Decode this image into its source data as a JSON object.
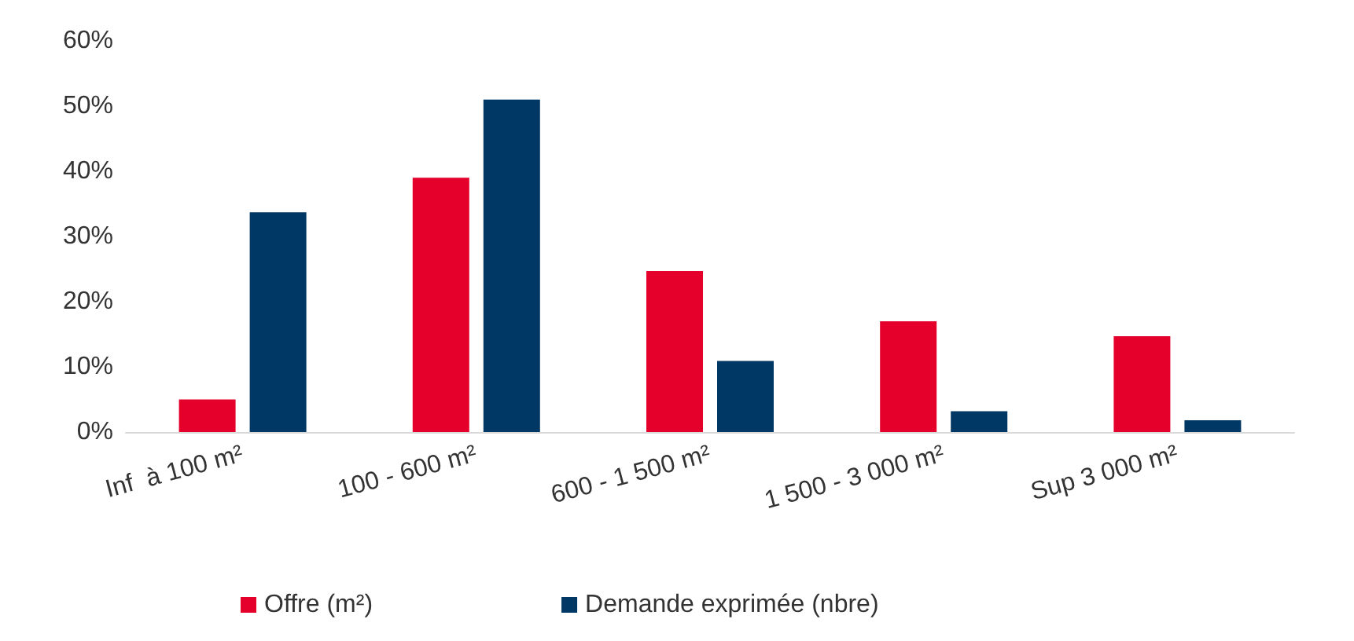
{
  "chart_data": {
    "type": "bar",
    "categories": [
      "Inf  à 100 m²",
      "100 - 600 m²",
      "600 - 1 500 m²",
      "1 500 - 3 000 m²",
      "Sup 3 000 m²"
    ],
    "series": [
      {
        "name": "Offre (m²)",
        "color": "#e4002b",
        "values": [
          5,
          39,
          24.7,
          17,
          14.7
        ]
      },
      {
        "name": "Demande exprimée (nbre)",
        "color": "#003865",
        "values": [
          33.7,
          51,
          10.9,
          3.2,
          1.8
        ]
      }
    ],
    "ylim": [
      0,
      60
    ],
    "yticks": [
      {
        "value": 0,
        "label": "0%"
      },
      {
        "value": 10,
        "label": "10%"
      },
      {
        "value": 20,
        "label": "20%"
      },
      {
        "value": 30,
        "label": "30%"
      },
      {
        "value": 40,
        "label": "40%"
      },
      {
        "value": 50,
        "label": "50%"
      },
      {
        "value": 60,
        "label": "60%"
      }
    ],
    "grid": false,
    "legend": "bottom"
  }
}
